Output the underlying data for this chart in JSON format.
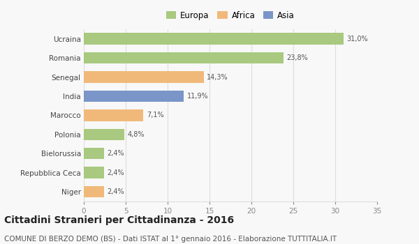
{
  "categories": [
    "Ucraina",
    "Romania",
    "Senegal",
    "India",
    "Marocco",
    "Polonia",
    "Bielorussia",
    "Repubblica Ceca",
    "Niger"
  ],
  "values": [
    31.0,
    23.8,
    14.3,
    11.9,
    7.1,
    4.8,
    2.4,
    2.4,
    2.4
  ],
  "labels": [
    "31,0%",
    "23,8%",
    "14,3%",
    "11,9%",
    "7,1%",
    "4,8%",
    "2,4%",
    "2,4%",
    "2,4%"
  ],
  "continent": [
    "Europa",
    "Europa",
    "Africa",
    "Asia",
    "Africa",
    "Europa",
    "Europa",
    "Europa",
    "Africa"
  ],
  "colors": {
    "Europa": "#a8c97f",
    "Africa": "#f0b97a",
    "Asia": "#7a96c9"
  },
  "legend_order": [
    "Europa",
    "Africa",
    "Asia"
  ],
  "xlim": [
    0,
    35
  ],
  "xticks": [
    0,
    5,
    10,
    15,
    20,
    25,
    30,
    35
  ],
  "title": "Cittadini Stranieri per Cittadinanza - 2016",
  "subtitle": "COMUNE DI BERZO DEMO (BS) - Dati ISTAT al 1° gennaio 2016 - Elaborazione TUTTITALIA.IT",
  "title_fontsize": 10,
  "subtitle_fontsize": 7.5,
  "bg_color": "#f8f8f8",
  "grid_color": "#dddddd",
  "bar_height": 0.6
}
